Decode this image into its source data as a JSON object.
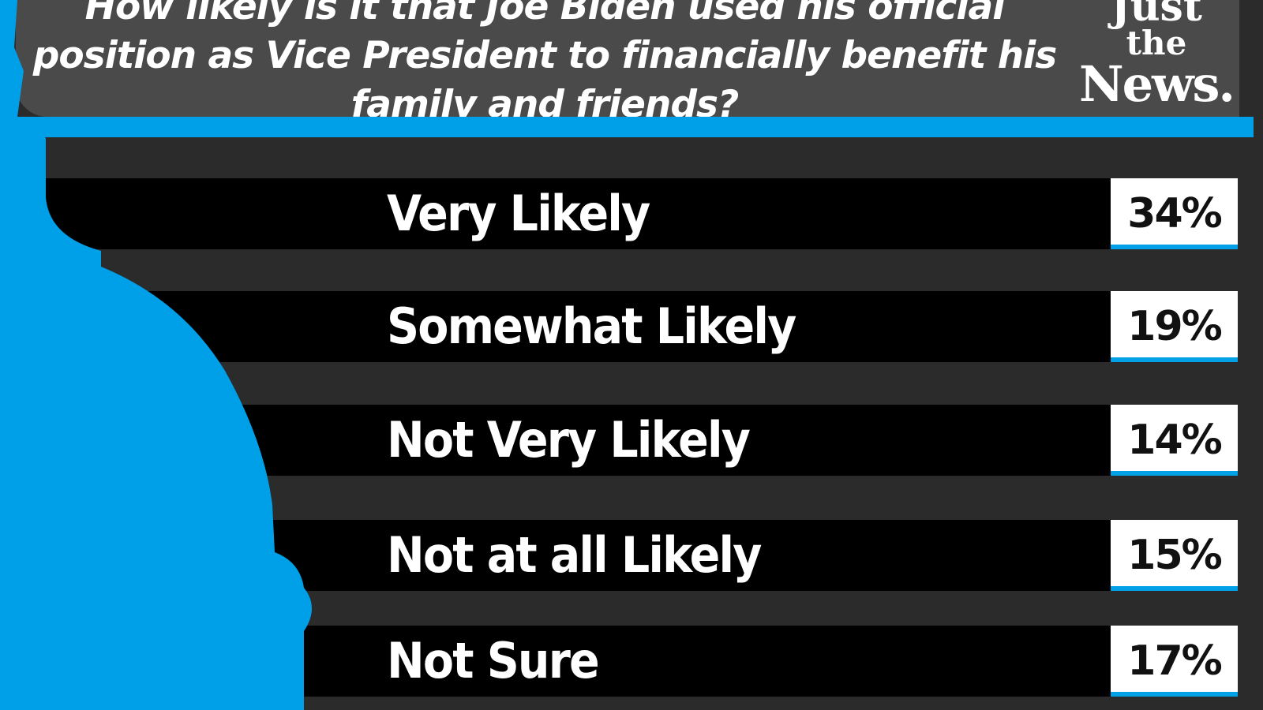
{
  "chart_data": {
    "type": "bar",
    "title": "How likely is it that Joe Biden used his official position as Vice President to financially benefit his family and friends?",
    "categories": [
      "Very Likely",
      "Somewhat Likely",
      "Not Very Likely",
      "Not at all Likely",
      "Not Sure"
    ],
    "values": [
      34,
      19,
      14,
      15,
      17
    ],
    "value_labels": [
      "34%",
      "19%",
      "14%",
      "15%",
      "17%"
    ],
    "colors": {
      "accent": "#00a0e9",
      "bar": "#000000",
      "header": "#4a4a4a",
      "background": "#2b2b2b"
    }
  },
  "logo": {
    "line1": "Just",
    "line2": "the",
    "line3": "News."
  }
}
